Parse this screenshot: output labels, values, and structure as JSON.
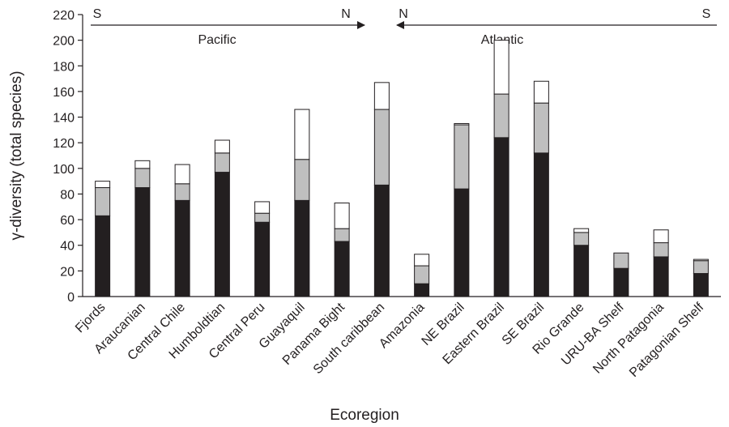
{
  "chart_data": {
    "type": "bar",
    "stacked": true,
    "x_label": "Ecoregion",
    "y_label": "γ-diversity (total species)",
    "annotations": [
      "S",
      "N",
      "Pacific",
      "N",
      "S",
      "Atlantic"
    ],
    "categories": [
      "Fjords",
      "Araucanian",
      "Central Chile",
      "Humboldtian",
      "Central Peru",
      "Guayaquil",
      "Panama Bight",
      "South caribbean",
      "Amazonia",
      "NE Brazil",
      "Eastern Brazil",
      "SE Brazil",
      "Rio Grande",
      "URU-BA Shelf",
      "North Patagonia",
      "Patagonian Shelf"
    ],
    "series": [
      {
        "color": "#231f20",
        "values": [
          63,
          85,
          75,
          97,
          58,
          75,
          43,
          87,
          10,
          84,
          124,
          112,
          40,
          22,
          31,
          18
        ]
      },
      {
        "color": "#bfbfbf",
        "values": [
          22,
          15,
          13,
          15,
          7,
          32,
          10,
          59,
          14,
          50,
          34,
          39,
          10,
          12,
          11,
          10
        ]
      },
      {
        "color": "#ffffff",
        "values": [
          5,
          6,
          15,
          10,
          9,
          39,
          20,
          21,
          9,
          1,
          42,
          17,
          3,
          0,
          10,
          1
        ]
      }
    ],
    "ylim": [
      0,
      220
    ],
    "yticks": [
      0,
      20,
      40,
      60,
      80,
      100,
      120,
      140,
      160,
      180,
      200,
      220
    ]
  }
}
